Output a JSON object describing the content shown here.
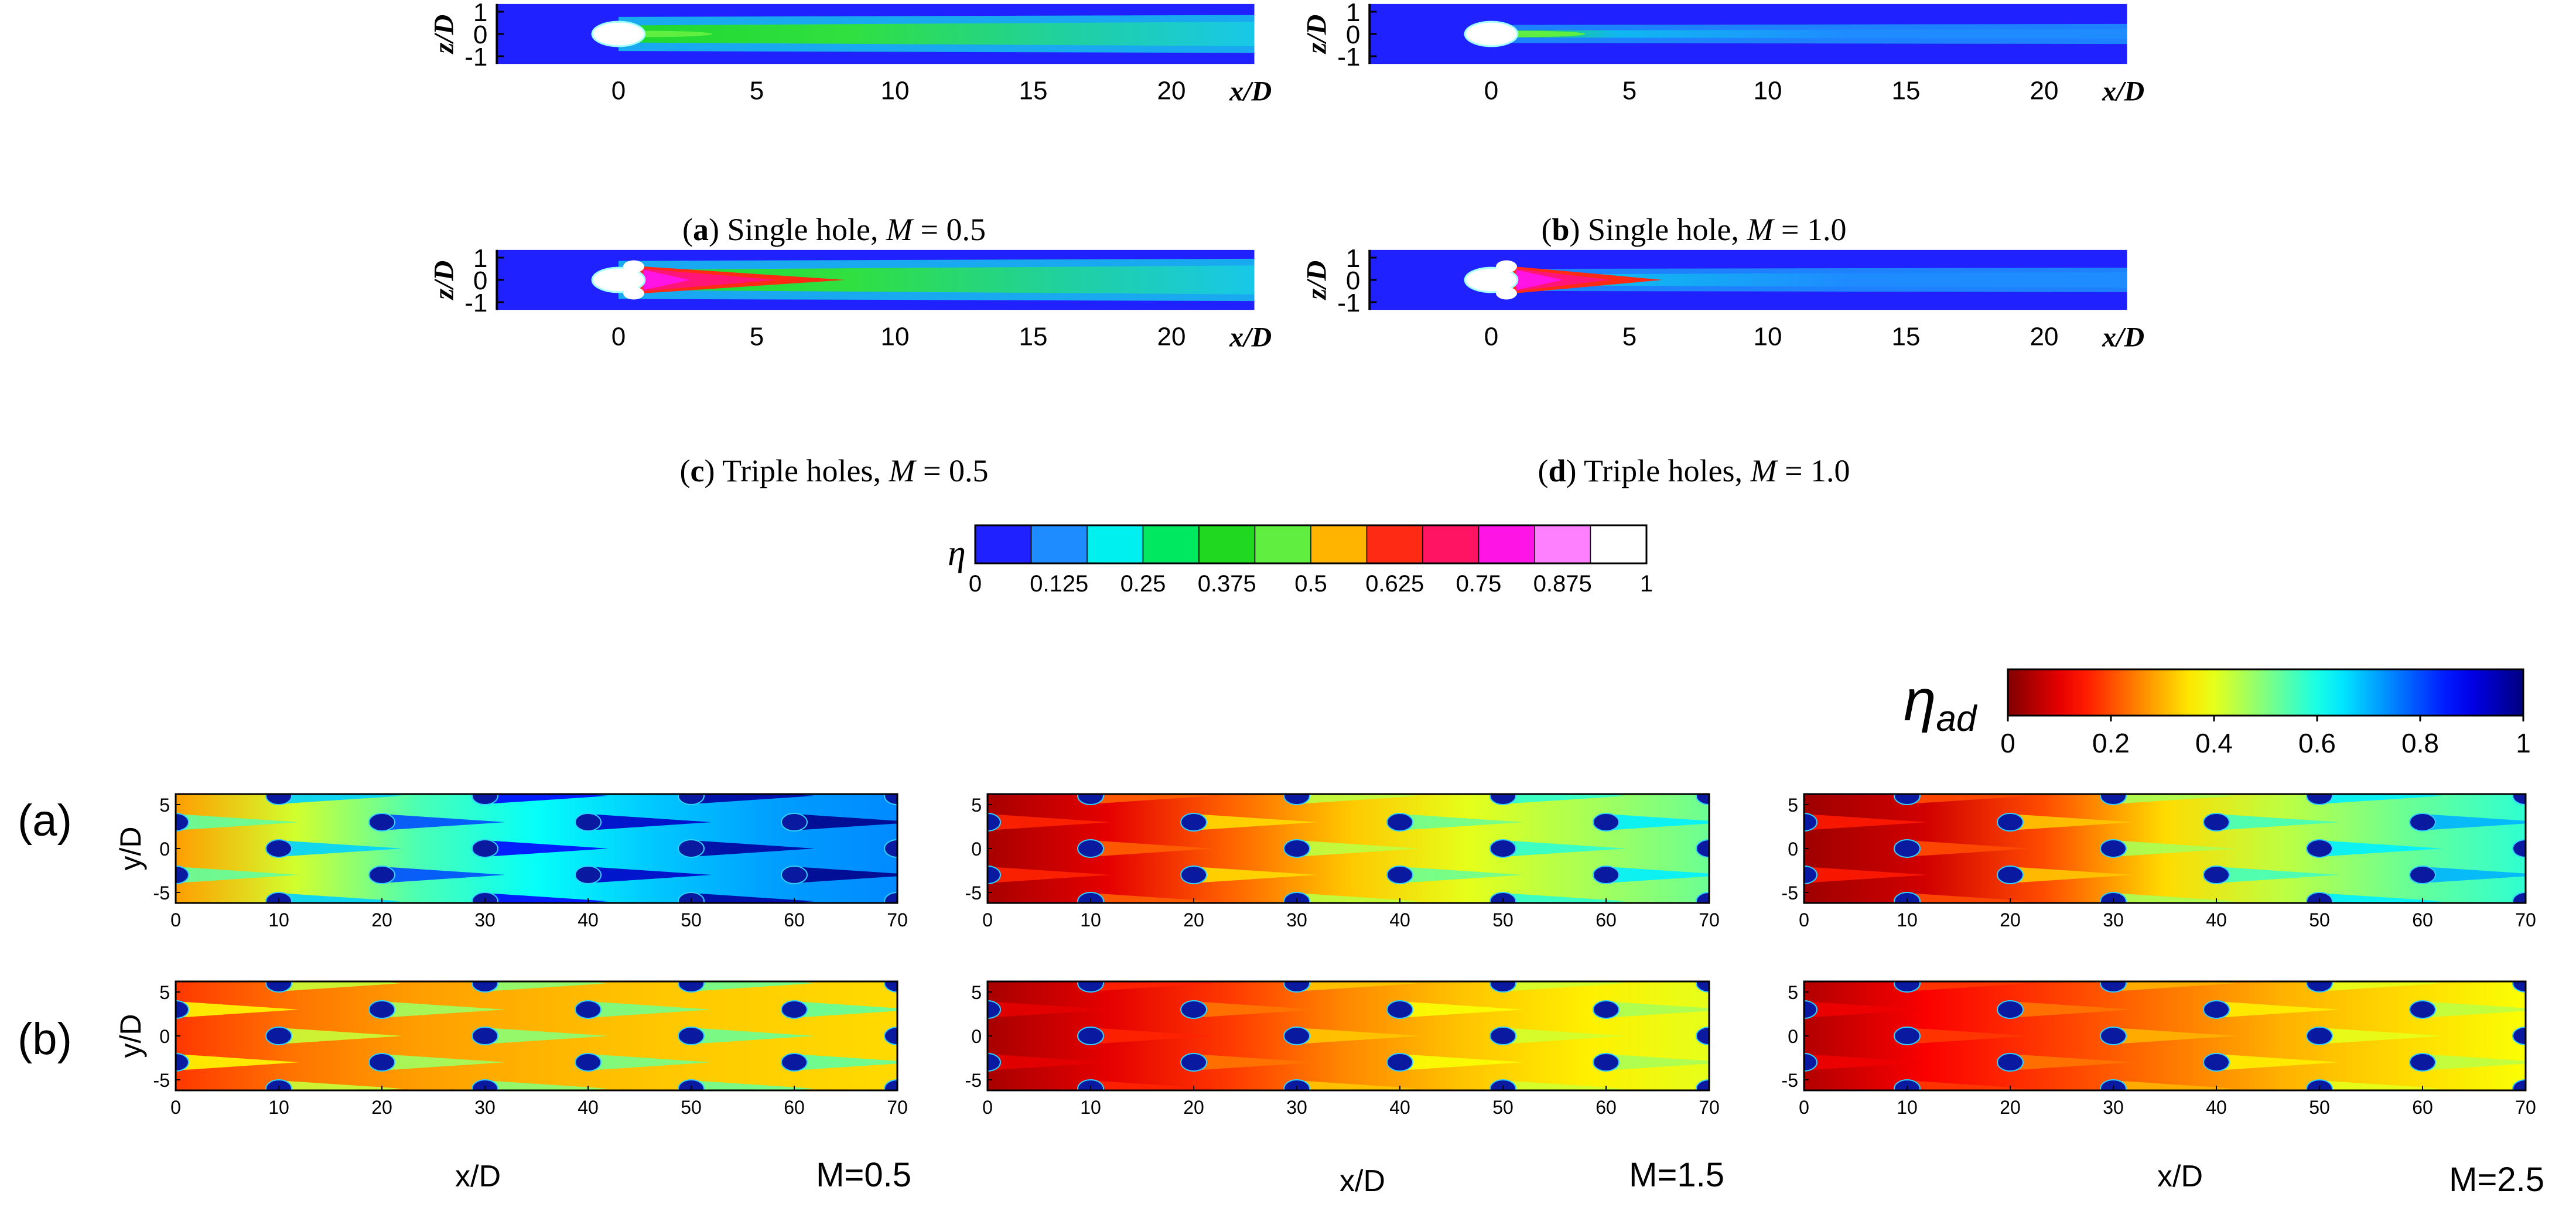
{
  "chart_data": {
    "top": {
      "type": "heatmap",
      "colorbar": {
        "symbol": "η",
        "ticks": [
          "0",
          "0.125",
          "0.25",
          "0.375",
          "0.5",
          "0.625",
          "0.75",
          "0.875",
          "1"
        ],
        "levels": [
          "#1f22ff",
          "#1e8cff",
          "#00efef",
          "#00e860",
          "#20d820",
          "#60ee40",
          "#ffb400",
          "#ff2a14",
          "#ff1464",
          "#ff14e6",
          "#ff80ff",
          "#ffffff"
        ]
      },
      "y_label": "z/D",
      "x_label": "x/D",
      "x_ticks": [
        "0",
        "5",
        "10",
        "15",
        "20"
      ],
      "y_ticks": [
        "1",
        "0",
        "-1"
      ],
      "panels": [
        {
          "letter": "a",
          "title": "Single hole, ",
          "var": "M",
          "value": " = 0.5",
          "holes": "single",
          "M": 0.5
        },
        {
          "letter": "b",
          "title": "Single hole, ",
          "var": "M",
          "value": " = 1.0",
          "holes": "single",
          "M": 1.0
        },
        {
          "letter": "c",
          "title": "Triple holes, ",
          "var": "M",
          "value": " = 0.5",
          "holes": "triple",
          "M": 0.5
        },
        {
          "letter": "d",
          "title": "Triple holes, ",
          "var": "M",
          "value": " = 1.0",
          "holes": "triple",
          "M": 1.0
        }
      ]
    },
    "bottom": {
      "type": "heatmap",
      "colorbar": {
        "symbol": "η",
        "subscript": "ad",
        "ticks": [
          "0",
          "0.2",
          "0.4",
          "0.6",
          "0.8",
          "1"
        ],
        "range": [
          0,
          1
        ]
      },
      "x_ticks": [
        "0",
        "10",
        "20",
        "30",
        "40",
        "50",
        "60",
        "70"
      ],
      "y_ticks": [
        "5",
        "0",
        "-5"
      ],
      "y_label": "y/D",
      "x_label": "x/D",
      "row_labels": [
        "(a)",
        "(b)"
      ],
      "columns": [
        {
          "label": "M=0.5",
          "M": 0.5
        },
        {
          "label": "M=1.5",
          "M": 1.5
        },
        {
          "label": "M=2.5",
          "M": 2.5
        }
      ]
    }
  }
}
